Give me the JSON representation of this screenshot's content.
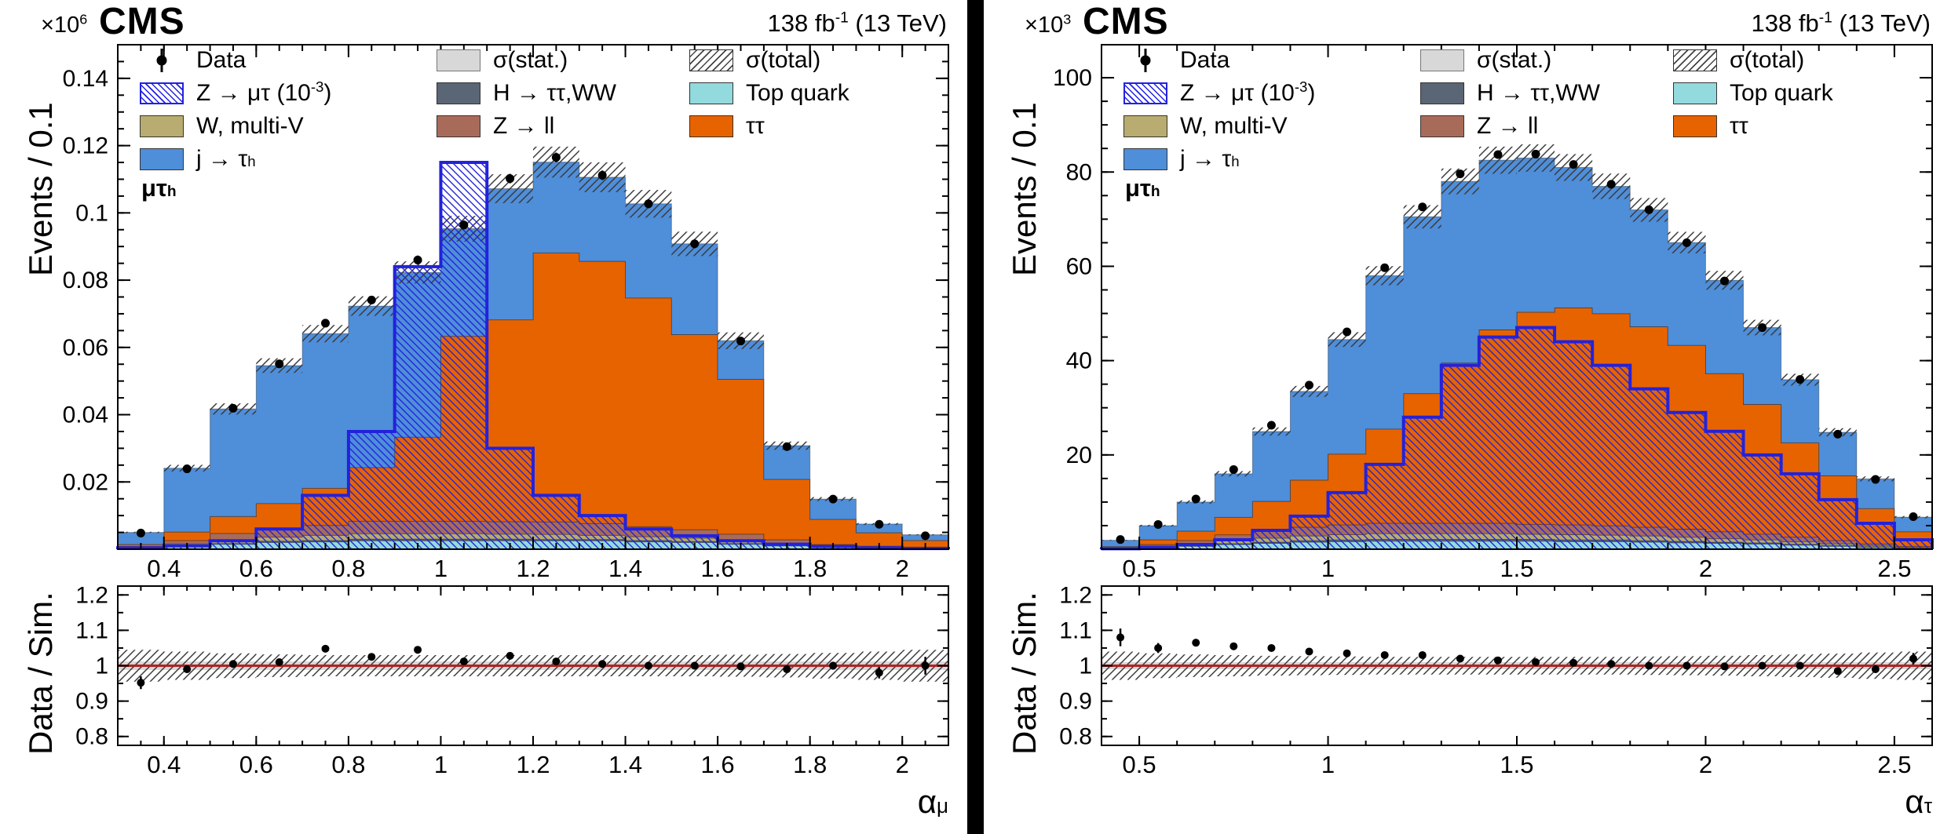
{
  "page": {
    "background": "#ffffff",
    "divider_color": "#000000"
  },
  "panels": [
    {
      "header": {
        "mult_base": "×10",
        "mult_exp": "6",
        "experiment": "CMS",
        "lumi_main": "138 fb",
        "lumi_sup": "-1",
        "lumi_tail": " (13 TeV)"
      },
      "y_title": "Events / 0.1",
      "ratio_title": "Data / Sim.",
      "x_title_base": "α",
      "x_title_sub": "μ",
      "channel_base": "μτ",
      "channel_sub": "h"
    },
    {
      "header": {
        "mult_base": "×10",
        "mult_exp": "3",
        "experiment": "CMS",
        "lumi_main": "138 fb",
        "lumi_sup": "-1",
        "lumi_tail": " (13 TeV)"
      },
      "y_title": "Events / 0.1",
      "ratio_title": "Data / Sim.",
      "x_title_base": "α",
      "x_title_sub": "τ",
      "channel_base": "μτ",
      "channel_sub": "h"
    }
  ],
  "legend": {
    "columns": [
      [
        {
          "name": "data",
          "swatch": "marker",
          "color": "#000000",
          "parts": [
            {
              "t": "Data"
            }
          ]
        },
        {
          "name": "signal",
          "swatch": "hatch-signal",
          "color": "#2222dd",
          "parts": [
            {
              "t": "Z → μτ (10"
            },
            {
              "sup": "-3"
            },
            {
              "t": ")"
            }
          ]
        },
        {
          "name": "w-multiv",
          "swatch": "fill",
          "color": "#b9ac70",
          "parts": [
            {
              "t": "W, multi-V"
            }
          ]
        },
        {
          "name": "jet-fakes",
          "swatch": "fill",
          "color": "#4f8ed9",
          "parts": [
            {
              "t": "j → τ"
            },
            {
              "sub": "h"
            }
          ]
        }
      ],
      [
        {
          "name": "stat-unc",
          "swatch": "stat",
          "color": "#d8d8d8",
          "parts": [
            {
              "t": "σ(stat.)"
            }
          ]
        },
        {
          "name": "higgs",
          "swatch": "fill",
          "color": "#5a6576",
          "parts": [
            {
              "t": "H → ττ,WW"
            }
          ]
        },
        {
          "name": "z-ll",
          "swatch": "fill",
          "color": "#a96b59",
          "parts": [
            {
              "t": "Z → ll"
            }
          ]
        }
      ],
      [
        {
          "name": "total-unc",
          "swatch": "hatch-black",
          "color": "#333333",
          "parts": [
            {
              "t": "σ(total)"
            }
          ]
        },
        {
          "name": "top-quark",
          "swatch": "fill",
          "color": "#92dadd",
          "parts": [
            {
              "t": "Top quark"
            }
          ]
        },
        {
          "name": "tautau",
          "swatch": "fill",
          "color": "#e76300",
          "parts": [
            {
              "t": "ττ"
            }
          ]
        }
      ]
    ]
  },
  "chart_data": [
    {
      "type": "bar",
      "subtype": "stacked-histogram-with-ratio",
      "title": "",
      "xlabel": "alpha_mu",
      "ylabel": "Events / 0.1",
      "y_unit_multiplier": "1e6",
      "bin_start": 0.3,
      "bin_width": 0.1,
      "n_bins": 18,
      "xlim": [
        0.3,
        2.1
      ],
      "ylim": [
        0,
        0.15
      ],
      "ratio_ylim": [
        0.775,
        1.225
      ],
      "x_major": {
        "values": [
          0.4,
          0.6,
          0.8,
          1.0,
          1.2,
          1.4,
          1.6,
          1.8,
          2.0
        ],
        "labels": [
          "0.4",
          "0.6",
          "0.8",
          "1",
          "1.2",
          "1.4",
          "1.6",
          "1.8",
          "2"
        ]
      },
      "x_minor_step": 0.05,
      "y_major": {
        "values": [
          0.02,
          0.04,
          0.06,
          0.08,
          0.1,
          0.12,
          0.14
        ],
        "labels": [
          "0.02",
          "0.04",
          "0.06",
          "0.08",
          "0.1",
          "0.12",
          "0.14"
        ]
      },
      "y_minor_step": 0.005,
      "ratio_major": {
        "values": [
          0.8,
          0.9,
          1.0,
          1.1,
          1.2
        ],
        "labels": [
          "0.8",
          "0.9",
          "1",
          "1.1",
          "1.2"
        ]
      },
      "ratio_minor_step": 0.05,
      "series": [
        {
          "name": "Top quark",
          "color": "#92dadd",
          "values": [
            0.0003,
            0.001,
            0.0015,
            0.002,
            0.0022,
            0.0025,
            0.0025,
            0.0025,
            0.0025,
            0.0025,
            0.0025,
            0.0022,
            0.002,
            0.0015,
            0.001,
            0.0005,
            0.0003,
            0.0002
          ]
        },
        {
          "name": "H → ττ,WW",
          "color": "#5a6576",
          "values": [
            0.0001,
            0.0001,
            0.0002,
            0.0004,
            0.0004,
            0.0005,
            0.0005,
            0.0005,
            0.0005,
            0.0004,
            0.0004,
            0.0004,
            0.0003,
            0.0002,
            0.0001,
            0.0001,
            0.0001,
            0.0001
          ]
        },
        {
          "name": "W, multi-V",
          "color": "#b9ac70",
          "values": [
            0.0001,
            0.0005,
            0.001,
            0.0012,
            0.0015,
            0.0016,
            0.0016,
            0.0016,
            0.0015,
            0.0015,
            0.0012,
            0.0011,
            0.001,
            0.0008,
            0.0005,
            0.0002,
            0.0001,
            0.0001
          ]
        },
        {
          "name": "Z → ll",
          "color": "#a96b59",
          "values": [
            0.0003,
            0.001,
            0.002,
            0.0025,
            0.003,
            0.0037,
            0.0037,
            0.0037,
            0.0037,
            0.0037,
            0.0035,
            0.003,
            0.0025,
            0.002,
            0.0012,
            0.0006,
            0.0004,
            0.0002
          ]
        },
        {
          "name": "ττ",
          "color": "#e76300",
          "values": [
            0.0006,
            0.0025,
            0.005,
            0.0075,
            0.011,
            0.016,
            0.025,
            0.055,
            0.06,
            0.08,
            0.078,
            0.068,
            0.058,
            0.046,
            0.018,
            0.0075,
            0.004,
            0.002
          ]
        },
        {
          "name": "j → τh",
          "color": "#4f8ed9",
          "values": [
            0.0036,
            0.019,
            0.032,
            0.041,
            0.046,
            0.048,
            0.049,
            0.032,
            0.039,
            0.027,
            0.025,
            0.028,
            0.027,
            0.0115,
            0.01,
            0.006,
            0.0026,
            0.0017
          ]
        }
      ],
      "signal": {
        "name": "Z → μτ (10-3)",
        "color": "#2222dd",
        "values": [
          0.0004,
          0.001,
          0.0025,
          0.006,
          0.016,
          0.035,
          0.084,
          0.115,
          0.03,
          0.016,
          0.01,
          0.006,
          0.004,
          0.0025,
          0.0015,
          0.0008,
          0.0004,
          0.0002
        ]
      },
      "data": {
        "name": "Data",
        "values": [
          0.0048,
          0.0239,
          0.0419,
          0.0551,
          0.0672,
          0.0741,
          0.086,
          0.0964,
          0.1102,
          0.1165,
          0.1112,
          0.1027,
          0.0908,
          0.0619,
          0.0305,
          0.0149,
          0.0074,
          0.004
        ],
        "errors": [
          0.0004,
          0.0007,
          0.0009,
          0.001,
          0.0011,
          0.0012,
          0.0013,
          0.0013,
          0.0014,
          0.0014,
          0.0014,
          0.0013,
          0.0013,
          0.001,
          0.0008,
          0.0006,
          0.0004,
          0.0003
        ]
      },
      "total_unc_rel": 0.04,
      "ratio": {
        "values": [
          0.952,
          0.99,
          1.005,
          1.01,
          1.048,
          1.025,
          1.045,
          1.012,
          1.028,
          1.012,
          1.005,
          1.0,
          1.0,
          0.998,
          0.99,
          1.0,
          0.98,
          1.0
        ],
        "errors": [
          0.018,
          0.009,
          0.007,
          0.006,
          0.006,
          0.005,
          0.005,
          0.005,
          0.005,
          0.005,
          0.005,
          0.005,
          0.005,
          0.006,
          0.008,
          0.011,
          0.016,
          0.025
        ],
        "band_halfwidth": [
          0.045,
          0.04,
          0.035,
          0.032,
          0.03,
          0.03,
          0.03,
          0.03,
          0.03,
          0.03,
          0.03,
          0.03,
          0.03,
          0.031,
          0.033,
          0.036,
          0.04,
          0.045
        ],
        "stat_halfwidth": 0.012,
        "line_color": "#b22222"
      }
    },
    {
      "type": "bar",
      "subtype": "stacked-histogram-with-ratio",
      "title": "",
      "xlabel": "alpha_tau",
      "ylabel": "Events / 0.1",
      "y_unit_multiplier": "1e3",
      "bin_start": 0.4,
      "bin_width": 0.1,
      "n_bins": 22,
      "xlim": [
        0.4,
        2.6
      ],
      "ylim": [
        0,
        107
      ],
      "ratio_ylim": [
        0.775,
        1.225
      ],
      "x_major": {
        "values": [
          0.5,
          1.0,
          1.5,
          2.0,
          2.5
        ],
        "labels": [
          "0.5",
          "1",
          "1.5",
          "2",
          "2.5"
        ]
      },
      "x_minor_step": 0.1,
      "y_major": {
        "values": [
          20,
          40,
          60,
          80,
          100
        ],
        "labels": [
          "20",
          "40",
          "60",
          "80",
          "100"
        ]
      },
      "y_minor_step": 5,
      "ratio_major": {
        "values": [
          0.8,
          0.9,
          1.0,
          1.1,
          1.2
        ],
        "labels": [
          "0.8",
          "0.9",
          "1",
          "1.1",
          "1.2"
        ]
      },
      "ratio_minor_step": 0.05,
      "series": [
        {
          "name": "Top quark",
          "color": "#92dadd",
          "values": [
            0.12,
            0.37,
            0.62,
            1.0,
            1.24,
            1.5,
            1.6,
            1.7,
            1.7,
            1.7,
            1.7,
            1.7,
            1.6,
            1.6,
            1.5,
            1.36,
            1.24,
            1.1,
            0.87,
            0.62,
            0.37,
            0.19
          ]
        },
        {
          "name": "H → ττ,WW",
          "color": "#5a6576",
          "values": [
            0.02,
            0.06,
            0.12,
            0.19,
            0.25,
            0.31,
            0.37,
            0.37,
            0.37,
            0.37,
            0.37,
            0.37,
            0.37,
            0.37,
            0.31,
            0.31,
            0.25,
            0.25,
            0.19,
            0.12,
            0.06,
            0.04
          ]
        },
        {
          "name": "W, multi-V",
          "color": "#b9ac70",
          "values": [
            0.06,
            0.19,
            0.37,
            0.62,
            0.87,
            1.0,
            1.1,
            1.24,
            1.24,
            1.24,
            1.24,
            1.1,
            1.1,
            1.0,
            1.0,
            0.87,
            0.74,
            0.62,
            0.5,
            0.37,
            0.25,
            0.12
          ]
        },
        {
          "name": "Z → ll",
          "color": "#a96b59",
          "values": [
            0.12,
            0.37,
            0.74,
            1.24,
            1.6,
            1.86,
            2.1,
            2.2,
            2.2,
            2.2,
            2.2,
            2.1,
            2.1,
            2.0,
            1.86,
            1.7,
            1.5,
            1.24,
            1.0,
            0.74,
            0.43,
            0.25
          ]
        },
        {
          "name": "ττ",
          "color": "#e76300",
          "values": [
            0.25,
            1,
            2,
            3.7,
            6.2,
            10,
            15,
            20,
            27.5,
            34,
            41,
            45,
            46,
            45,
            42.5,
            39,
            33.5,
            27.5,
            20,
            13.7,
            7.5,
            3.1
          ]
        },
        {
          "name": "j → τh",
          "color": "#4f8ed9",
          "values": [
            1.33,
            3.01,
            6.15,
            9.25,
            14.8,
            18.8,
            24.3,
            32.5,
            37.5,
            38.5,
            36,
            32.7,
            29.8,
            27,
            24.8,
            21.8,
            19.8,
            16.3,
            13.4,
            9.25,
            6.3,
            3.1
          ]
        }
      ],
      "signal": {
        "name": "Z → μτ (10-3)",
        "color": "#2222dd",
        "values": [
          0.1,
          0.4,
          1,
          2,
          4,
          7,
          12,
          18,
          28,
          39,
          45,
          47,
          44,
          39,
          34,
          29,
          25,
          20,
          16,
          10.5,
          5.5,
          2
        ]
      },
      "data": {
        "name": "Data",
        "values": [
          2.05,
          5.25,
          10.65,
          16.9,
          26.3,
          34.8,
          46.1,
          59.7,
          72.6,
          79.6,
          83.7,
          83.8,
          81.6,
          77.4,
          72,
          65,
          56.9,
          47,
          36,
          24.4,
          14.8,
          6.9
        ],
        "errors": [
          0.3,
          0.35,
          0.45,
          0.5,
          0.55,
          0.6,
          0.65,
          0.7,
          0.75,
          0.8,
          0.8,
          0.8,
          0.8,
          0.78,
          0.75,
          0.72,
          0.68,
          0.62,
          0.55,
          0.45,
          0.35,
          0.3
        ]
      },
      "total_unc_rel": 0.035,
      "ratio": {
        "values": [
          1.08,
          1.05,
          1.065,
          1.055,
          1.05,
          1.04,
          1.035,
          1.03,
          1.03,
          1.02,
          1.015,
          1.01,
          1.008,
          1.005,
          1.0,
          1.0,
          0.998,
          1.0,
          1.0,
          0.985,
          0.99,
          1.02
        ],
        "errors": [
          0.025,
          0.014,
          0.01,
          0.008,
          0.007,
          0.006,
          0.005,
          0.005,
          0.004,
          0.004,
          0.004,
          0.004,
          0.004,
          0.004,
          0.004,
          0.005,
          0.005,
          0.005,
          0.006,
          0.008,
          0.01,
          0.016
        ],
        "band_halfwidth": [
          0.04,
          0.035,
          0.032,
          0.03,
          0.028,
          0.027,
          0.026,
          0.025,
          0.025,
          0.025,
          0.025,
          0.025,
          0.025,
          0.025,
          0.026,
          0.027,
          0.028,
          0.03,
          0.032,
          0.034,
          0.037,
          0.04
        ],
        "stat_halfwidth": 0.01,
        "line_color": "#b22222"
      }
    }
  ]
}
